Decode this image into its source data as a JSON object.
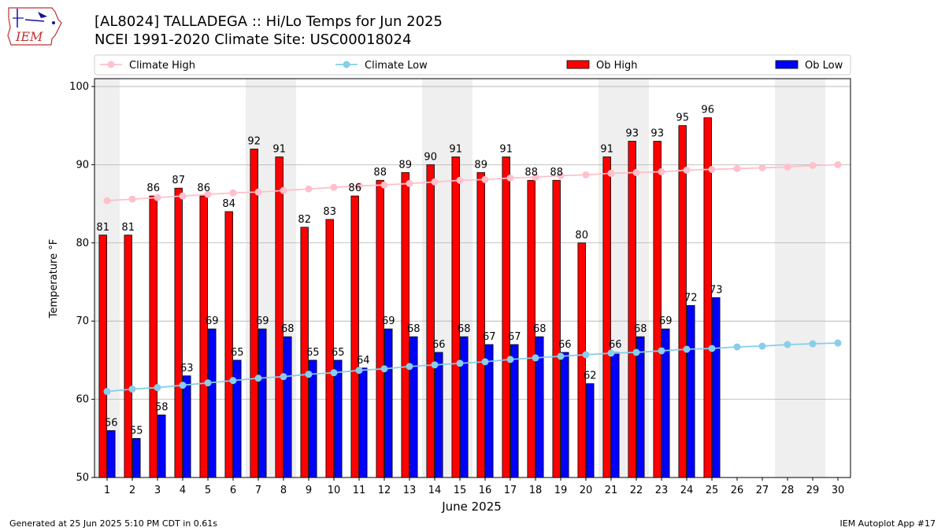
{
  "header": {
    "title_line1": "[AL8024] TALLADEGA :: Hi/Lo Temps for Jun 2025",
    "title_line2": "NCEI 1991-2020 Climate Site: USC00018024",
    "logo_text": "IEM"
  },
  "footer": {
    "generated": "Generated at 25 Jun 2025 5:10 PM CDT in 0.61s",
    "app": "IEM Autoplot App #17"
  },
  "colors": {
    "ob_high": "#ff0000",
    "ob_low": "#0000ff",
    "climate_high": "#ffc0cb",
    "climate_low": "#87ceeb",
    "weekend_band": "#efefef",
    "grid": "#b0b0b0"
  },
  "chart_data": {
    "type": "bar",
    "xlabel": "June 2025",
    "ylabel": "Temperature °F",
    "ylim": [
      50,
      101
    ],
    "xlim": [
      0.5,
      30.5
    ],
    "yticks": [
      50,
      60,
      70,
      80,
      90,
      100
    ],
    "grid": "horizontal",
    "legend_position": "top",
    "categories": [
      1,
      2,
      3,
      4,
      5,
      6,
      7,
      8,
      9,
      10,
      11,
      12,
      13,
      14,
      15,
      16,
      17,
      18,
      19,
      20,
      21,
      22,
      23,
      24,
      25,
      26,
      27,
      28,
      29,
      30
    ],
    "weekend_bands": [
      [
        1,
        1
      ],
      [
        7,
        8
      ],
      [
        14,
        15
      ],
      [
        21,
        22
      ],
      [
        28,
        29
      ]
    ],
    "series": [
      {
        "name": "Climate High",
        "kind": "line",
        "values": [
          85.4,
          85.6,
          85.8,
          86.0,
          86.2,
          86.4,
          86.5,
          86.7,
          86.9,
          87.1,
          87.3,
          87.4,
          87.6,
          87.8,
          88.0,
          88.1,
          88.3,
          88.4,
          88.6,
          88.7,
          88.9,
          89.0,
          89.1,
          89.3,
          89.4,
          89.5,
          89.6,
          89.7,
          89.9,
          90.0
        ]
      },
      {
        "name": "Climate Low",
        "kind": "line",
        "values": [
          61.0,
          61.3,
          61.5,
          61.8,
          62.1,
          62.4,
          62.7,
          62.9,
          63.2,
          63.4,
          63.7,
          63.9,
          64.2,
          64.4,
          64.6,
          64.8,
          65.1,
          65.3,
          65.5,
          65.7,
          65.9,
          66.0,
          66.2,
          66.4,
          66.5,
          66.7,
          66.8,
          67.0,
          67.1,
          67.2
        ]
      },
      {
        "name": "Ob High",
        "kind": "bar",
        "values": [
          81,
          81,
          86,
          87,
          86,
          84,
          92,
          91,
          82,
          83,
          86,
          88,
          89,
          90,
          91,
          89,
          91,
          88,
          88,
          80,
          91,
          93,
          93,
          95,
          96,
          null,
          null,
          null,
          null,
          null
        ]
      },
      {
        "name": "Ob Low",
        "kind": "bar",
        "values": [
          56,
          55,
          58,
          63,
          69,
          65,
          69,
          68,
          65,
          65,
          64,
          69,
          68,
          66,
          68,
          67,
          67,
          68,
          66,
          62,
          66,
          68,
          69,
          72,
          73,
          null,
          null,
          null,
          null,
          null
        ]
      }
    ]
  }
}
